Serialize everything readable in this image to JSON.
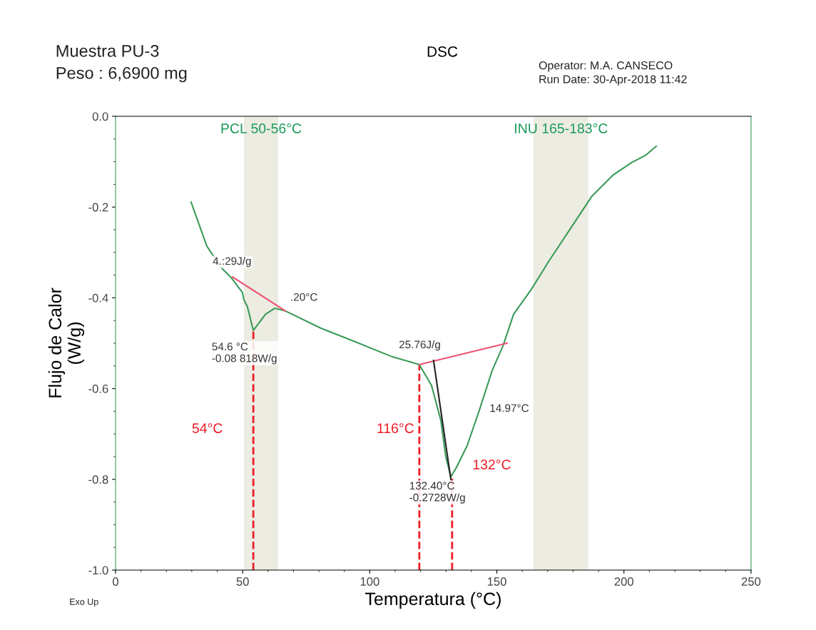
{
  "chart_data": {
    "type": "line",
    "title": "DSC",
    "xlabel": "Temperatura (°C)",
    "ylabel": "Flujo de Calor\n(W/g)",
    "xlim": [
      0,
      250
    ],
    "ylim": [
      -1.0,
      0.0
    ],
    "xticks": [
      0,
      50,
      100,
      150,
      200,
      250
    ],
    "yticks": [
      {
        "value": 0.0,
        "label": "0.0"
      },
      {
        "value": -0.2,
        "label": "-0.2"
      },
      {
        "value": -0.4,
        "label": "-0.4"
      },
      {
        "value": -0.6,
        "label": "-0.6"
      },
      {
        "value": -0.8,
        "label": "-0.8"
      },
      {
        "value": -1.0,
        "label": "-1.0"
      }
    ],
    "grid": false,
    "legend": false,
    "marker": "none",
    "line_style": "solid",
    "series": [
      {
        "color": "#3a9a5a",
        "x": [
          29.7,
          35.9,
          41.5,
          45.7,
          49.9,
          50.5,
          51.9,
          54.2,
          59.0,
          62.6,
          66.8,
          80.8,
          94.8,
          108.9,
          119.5,
          124.3,
          128.0,
          129.9,
          131.9,
          134.1,
          138.3,
          143.1,
          148.1,
          152.4,
          156.6,
          163.6,
          170.6,
          179.0,
          187.4,
          195.8,
          203.0,
          208.5,
          212.7
        ],
        "values": [
          -0.189,
          -0.286,
          -0.333,
          -0.357,
          -0.388,
          -0.404,
          -0.42,
          -0.472,
          -0.436,
          -0.423,
          -0.429,
          -0.467,
          -0.498,
          -0.53,
          -0.547,
          -0.593,
          -0.671,
          -0.75,
          -0.794,
          -0.774,
          -0.726,
          -0.648,
          -0.561,
          -0.506,
          -0.436,
          -0.381,
          -0.318,
          -0.247,
          -0.176,
          -0.129,
          -0.102,
          -0.086,
          -0.066
        ]
      },
      {
        "color": "#f0506e",
        "x": [
          46.0,
          66.8
        ],
        "values": [
          -0.354,
          -0.429
        ]
      },
      {
        "color": "#f0506e",
        "x": [
          119.5,
          154.0
        ],
        "values": [
          -0.547,
          -0.5
        ]
      },
      {
        "color": "#222222",
        "x": [
          125.1,
          131.9
        ],
        "values": [
          -0.538,
          -0.8
        ]
      }
    ],
    "bands": [
      {
        "axis": "x",
        "from": 50.5,
        "to": 64.0,
        "label": "PCL 50-56°C",
        "color": "#ecece2"
      },
      {
        "axis": "x",
        "from": 164.4,
        "to": 186.0,
        "label": "INU 165-183°C",
        "color": "#ecece2"
      }
    ],
    "ref_lines": [
      {
        "axis": "x",
        "value": 54.2,
        "label": "54°C",
        "color": "#ee1c25",
        "line_style": "dashed"
      },
      {
        "axis": "x",
        "value": 119.5,
        "label": "116°C",
        "color": "#ee1c25",
        "line_style": "dashed"
      },
      {
        "axis": "x",
        "value": 132.4,
        "label": "132°C",
        "color": "#ee1c25",
        "line_style": "dashed"
      }
    ],
    "annotations": [
      "Muestra PU-3",
      "Peso : 6,6900 mg",
      "Operator: M.A. CANSECO",
      "Run Date: 30-Apr-2018 11:42",
      "Exo Up",
      {
        "text": "4.:29J/g",
        "x": 46.0,
        "y": -0.354
      },
      {
        "text": ".20°C",
        "x": 66.8,
        "y": -0.429
      },
      {
        "text": "54.6 °C\n-0.08 818W/g",
        "x": 54.2,
        "y": -0.472
      },
      {
        "text": "25.76J/g",
        "x": 125.1,
        "y": -0.538
      },
      {
        "text": "14.97°C",
        "x": 144.0,
        "y": -0.645
      },
      {
        "text": "132.40°C\n-0.2728W/g",
        "x": 131.9,
        "y": -0.794
      }
    ]
  }
}
